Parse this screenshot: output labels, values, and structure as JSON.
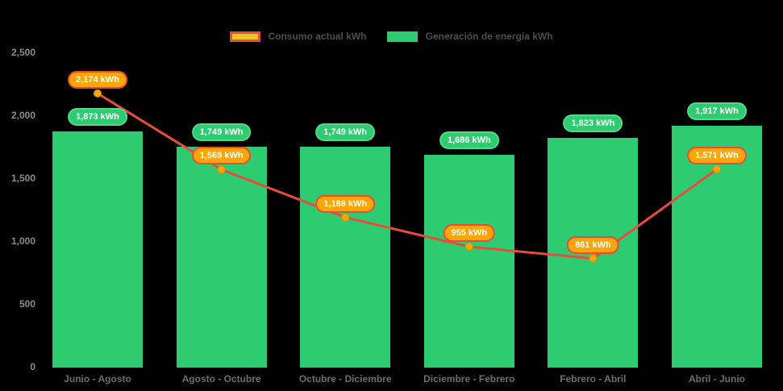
{
  "legend": {
    "consumo": {
      "label": "Consumo actual kWh",
      "fill": "#e9c52f",
      "border": "#e74c3c"
    },
    "generacion": {
      "label": "Generación de energía kWh",
      "fill": "#2ecc71"
    }
  },
  "chart_data": {
    "type": "bar",
    "title": "",
    "categories": [
      "Junio - Agosto",
      "Agosto - Octubre",
      "Octubre - Diciembre",
      "Diciembre - Febrero",
      "Febrero - Abril",
      "Abril - Junio"
    ],
    "series": [
      {
        "name": "Generación de energía kWh",
        "type": "bar",
        "color": "#2ecc71",
        "label_border": "#54d98c",
        "values": [
          1873,
          1749,
          1749,
          1686,
          1823,
          1917
        ],
        "labels": [
          "1,873 kWh",
          "1,749 kWh",
          "1,749 kWh",
          "1,686 kWh",
          "1,823 kWh",
          "1,917 kWh"
        ]
      },
      {
        "name": "Consumo actual kWh",
        "type": "line",
        "color": "#e74c3c",
        "marker_color": "#ffa500",
        "label_fill": "#ffa500",
        "values": [
          2174,
          1569,
          1188,
          955,
          861,
          1571
        ],
        "labels": [
          "2,174 kWh",
          "1,569 kWh",
          "1,188 kWh",
          "955 kWh",
          "861 kWh",
          "1,571 kWh"
        ]
      }
    ],
    "xlabel": "",
    "ylabel": "",
    "ylim": [
      0,
      2500
    ],
    "yticks": {
      "values": [
        0,
        500,
        1000,
        1500,
        2000,
        2500
      ],
      "labels": [
        "0",
        "500",
        "1,000",
        "1,500",
        "2,000",
        "2,500"
      ]
    },
    "grid": false,
    "legend_position": "top"
  }
}
